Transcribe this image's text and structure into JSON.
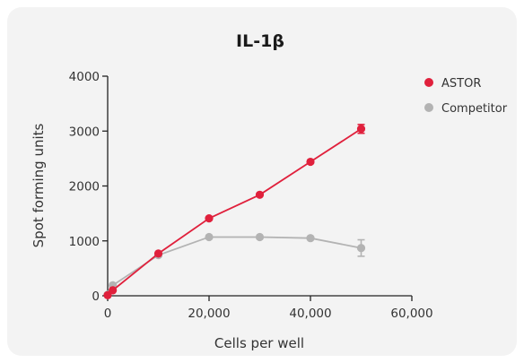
{
  "chart_data": {
    "type": "line",
    "title": "IL-1β",
    "xlabel": "Cells per well",
    "ylabel": "Spot forming units",
    "xlim": [
      0,
      60000
    ],
    "ylim": [
      0,
      4000
    ],
    "xticks": [
      0,
      20000,
      40000,
      60000
    ],
    "xtick_labels": [
      "0",
      "20,000",
      "40,000",
      "60,000"
    ],
    "yticks": [
      0,
      1000,
      2000,
      3000,
      4000
    ],
    "ytick_labels": [
      "0",
      "1000",
      "2000",
      "3000",
      "4000"
    ],
    "grid": false,
    "legend_position": "right",
    "series": [
      {
        "name": "ASTOR",
        "color": "#e0203c",
        "x": [
          0,
          1000,
          10000,
          20000,
          30000,
          40000,
          50000
        ],
        "y": [
          10,
          100,
          770,
          1410,
          1840,
          2440,
          3040
        ],
        "yerr": [
          0,
          0,
          0,
          0,
          0,
          0,
          80
        ]
      },
      {
        "name": "Competitor",
        "color": "#b3b3b3",
        "x": [
          0,
          1000,
          10000,
          20000,
          30000,
          40000,
          50000
        ],
        "y": [
          20,
          190,
          740,
          1070,
          1070,
          1050,
          870
        ],
        "yerr": [
          0,
          0,
          0,
          0,
          0,
          0,
          150
        ]
      }
    ]
  }
}
